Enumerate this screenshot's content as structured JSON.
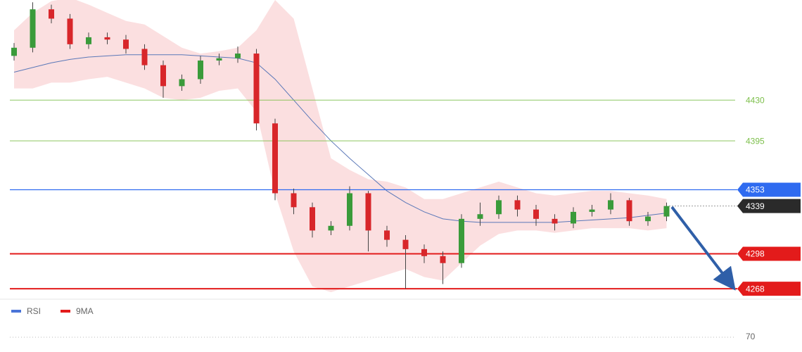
{
  "chart_data": {
    "type": "candlestick",
    "ylim": [
      4262,
      4516
    ],
    "open": [
      4468,
      4475,
      4508,
      4500,
      4478,
      4484,
      4482,
      4474,
      4460,
      4442,
      4448,
      4464,
      4466,
      4470,
      4410,
      4350,
      4338,
      4318,
      4322,
      4350,
      4318,
      4310,
      4302,
      4296,
      4290,
      4328,
      4332,
      4344,
      4336,
      4328,
      4324,
      4334,
      4336,
      4344,
      4326,
      4330
    ],
    "high": [
      4479,
      4514,
      4512,
      4504,
      4488,
      4488,
      4486,
      4478,
      4464,
      4452,
      4468,
      4470,
      4476,
      4474,
      4414,
      4354,
      4342,
      4326,
      4356,
      4352,
      4322,
      4314,
      4306,
      4300,
      4332,
      4342,
      4348,
      4348,
      4340,
      4332,
      4338,
      4340,
      4350,
      4346,
      4334,
      4342
    ],
    "low": [
      4464,
      4471,
      4496,
      4474,
      4474,
      4478,
      4470,
      4456,
      4432,
      4438,
      4444,
      4460,
      4462,
      4404,
      4344,
      4332,
      4312,
      4314,
      4318,
      4300,
      4304,
      4268,
      4290,
      4272,
      4286,
      4322,
      4328,
      4330,
      4322,
      4318,
      4320,
      4330,
      4332,
      4322,
      4322,
      4326
    ],
    "close": [
      4475,
      4508,
      4500,
      4478,
      4484,
      4482,
      4474,
      4460,
      4442,
      4448,
      4464,
      4466,
      4470,
      4410,
      4350,
      4338,
      4318,
      4322,
      4350,
      4318,
      4310,
      4302,
      4296,
      4290,
      4328,
      4332,
      4344,
      4336,
      4328,
      4324,
      4334,
      4336,
      4344,
      4326,
      4330,
      4339
    ],
    "moving_average": [
      4454,
      4458,
      4462,
      4465,
      4467,
      4468,
      4469,
      4469,
      4469,
      4469,
      4468,
      4467,
      4466,
      4462,
      4448,
      4430,
      4412,
      4395,
      4380,
      4366,
      4352,
      4342,
      4334,
      4328,
      4326,
      4325,
      4325,
      4325,
      4325,
      4325,
      4326,
      4327,
      4328,
      4329,
      4331,
      4333
    ],
    "bollinger": {
      "upper": [
        4490,
        4505,
        4515,
        4518,
        4512,
        4505,
        4498,
        4495,
        4485,
        4475,
        4470,
        4472,
        4475,
        4490,
        4516,
        4500,
        4440,
        4380,
        4370,
        4362,
        4360,
        4355,
        4345,
        4345,
        4350,
        4355,
        4360,
        4355,
        4350,
        4348,
        4350,
        4352,
        4352,
        4350,
        4348,
        4345
      ],
      "lower": [
        4440,
        4440,
        4445,
        4445,
        4448,
        4450,
        4445,
        4440,
        4432,
        4430,
        4432,
        4438,
        4440,
        4420,
        4350,
        4300,
        4270,
        4265,
        4270,
        4275,
        4280,
        4285,
        4278,
        4275,
        4290,
        4305,
        4315,
        4318,
        4318,
        4316,
        4318,
        4320,
        4320,
        4320,
        4318,
        4320
      ]
    },
    "up_color": "#3a9b3a",
    "down_color": "#d8262a",
    "levels": [
      {
        "value": 4430,
        "color": "#7cbf4a",
        "style": "text"
      },
      {
        "value": 4395,
        "color": "#7cbf4a",
        "style": "text"
      },
      {
        "value": 4353,
        "color": "#2f6bf0",
        "style": "box"
      },
      {
        "value": 4298,
        "color": "#e31b1b",
        "style": "box"
      },
      {
        "value": 4268,
        "color": "#e31b1b",
        "style": "box"
      }
    ],
    "current_price": 4339,
    "rsi_panel": {
      "legend": [
        {
          "name": "RSI",
          "color": "#4a74d8"
        },
        {
          "name": "9MA",
          "color": "#e31b1b"
        }
      ],
      "ticks": [
        70
      ]
    }
  }
}
